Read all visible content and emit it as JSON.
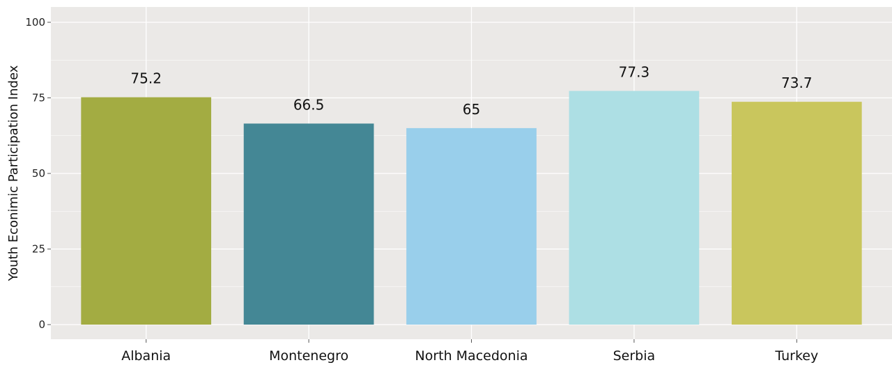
{
  "chart_data": {
    "type": "bar",
    "categories": [
      "Albania",
      "Montenegro",
      "North Macedonia",
      "Serbia",
      "Turkey"
    ],
    "values": [
      75.2,
      66.5,
      65,
      77.3,
      73.7
    ],
    "value_labels": [
      "75.2",
      "66.5",
      "65",
      "77.3",
      "73.7"
    ],
    "bar_colors": [
      "#a3ac42",
      "#448795",
      "#99cfeb",
      "#addfe4",
      "#c9c65d"
    ],
    "title": "",
    "xlabel": "",
    "ylabel": "Youth Econimic Participation Index",
    "ylim": [
      0,
      100
    ],
    "yticks": [
      0,
      25,
      50,
      75,
      100
    ],
    "ytick_labels": [
      "0",
      "25",
      "50",
      "75",
      "100"
    ],
    "grid": true,
    "legend": "none",
    "panel_background": "#ebe9e7",
    "grid_color": "#ffffff"
  }
}
